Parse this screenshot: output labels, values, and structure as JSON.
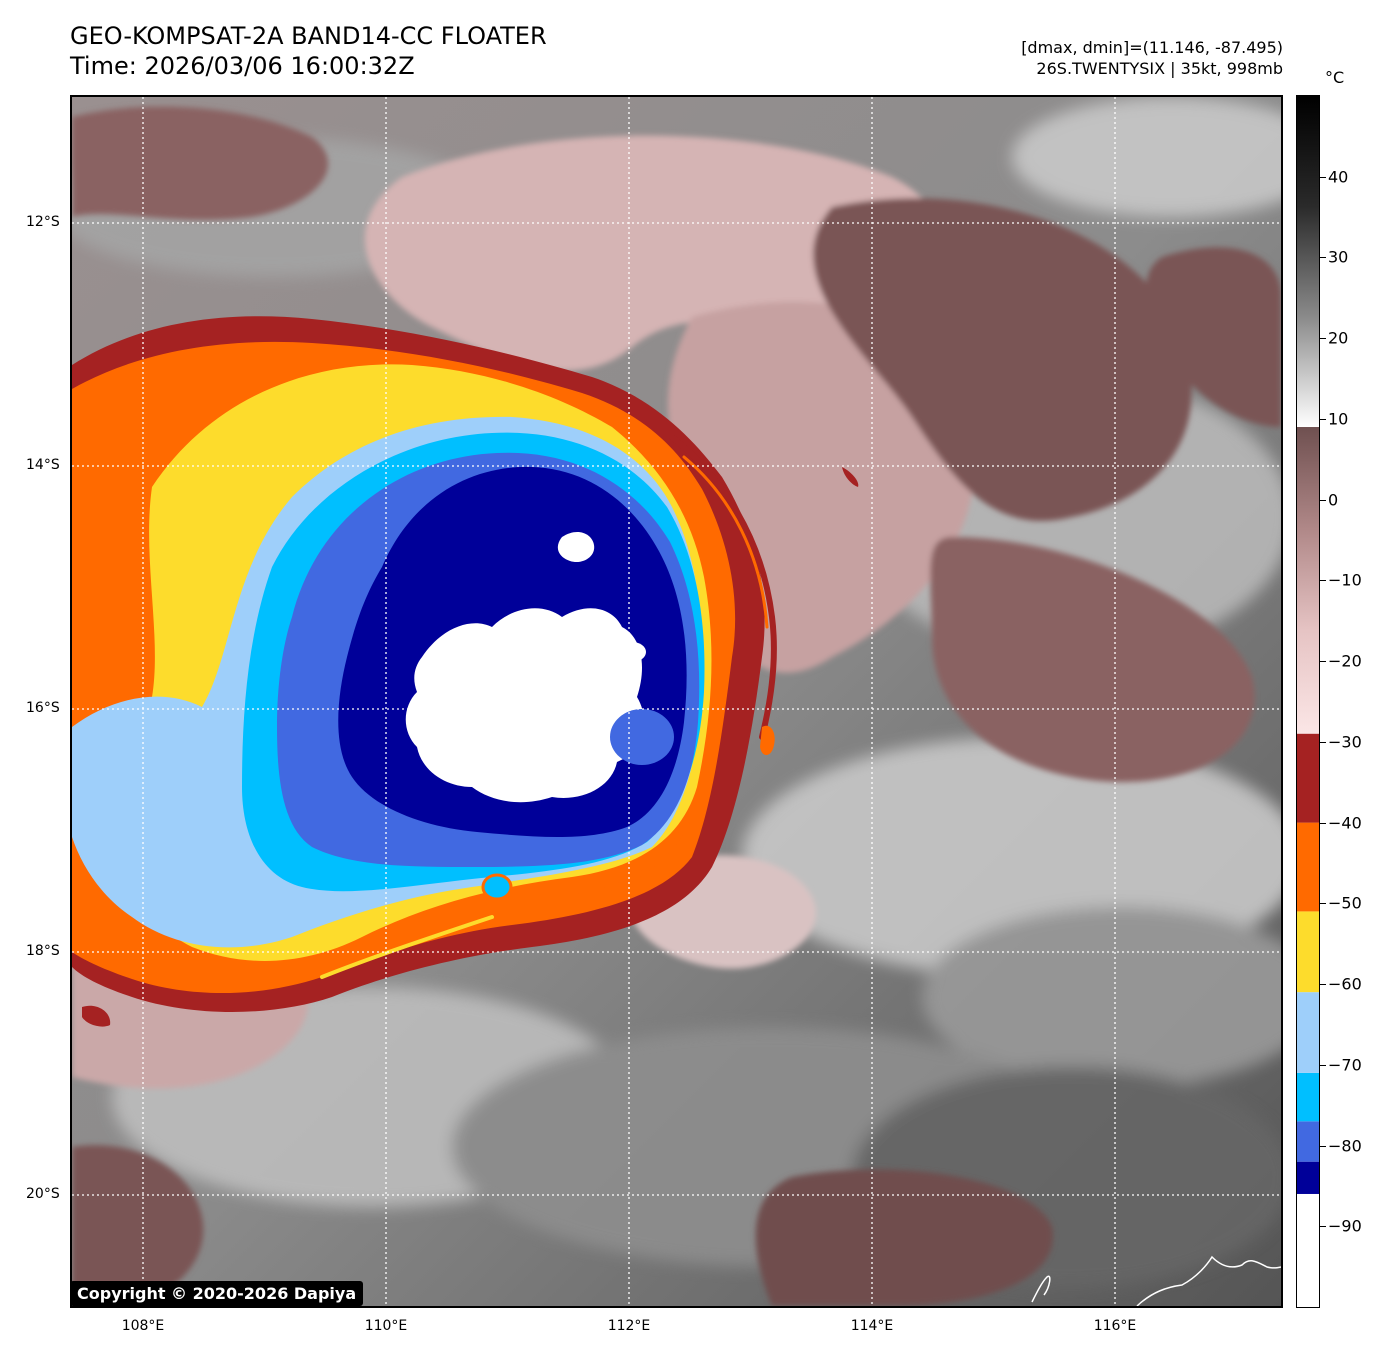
{
  "header": {
    "title": "GEO-KOMPSAT-2A BAND14-CC FLOATER",
    "time": "Time: 2026/03/06 16:00:32Z",
    "range": "[dmax, dmin]=(11.146, -87.495)",
    "storm": "26S.TWENTYSIX | 35kt, 998mb"
  },
  "map": {
    "lat_labels": [
      "12°S",
      "14°S",
      "16°S",
      "18°S",
      "20°S"
    ],
    "lon_labels": [
      "108°E",
      "110°E",
      "112°E",
      "114°E",
      "116°E"
    ],
    "copyright": "Copyright © 2020-2026 Dapiya"
  },
  "colorbar": {
    "unit": "°C",
    "tick_labels": [
      "40",
      "30",
      "20",
      "10",
      "0",
      "−10",
      "−20",
      "−30",
      "−40",
      "−50",
      "−60",
      "−70",
      "−80",
      "−90"
    ],
    "ticks": [
      40,
      30,
      20,
      10,
      0,
      -10,
      -20,
      -30,
      -40,
      -50,
      -60,
      -70,
      -80,
      -90
    ],
    "range": [
      -100,
      50
    ],
    "bands": [
      {
        "from": -100,
        "to": -86,
        "color": "#ffffff"
      },
      {
        "from": -86,
        "to": -82,
        "color": "#000099"
      },
      {
        "from": -82,
        "to": -77,
        "color": "#4169e1"
      },
      {
        "from": -77,
        "to": -71,
        "color": "#00bfff"
      },
      {
        "from": -71,
        "to": -61,
        "color": "#9ecffa"
      },
      {
        "from": -61,
        "to": -51,
        "color": "#fddc2c"
      },
      {
        "from": -51,
        "to": -40,
        "color": "#ff6a00"
      },
      {
        "from": -40,
        "to": -29,
        "color": "#a52222"
      }
    ],
    "gradients": [
      {
        "from": -29,
        "to": 9,
        "stops": [
          "#fbe6e6",
          "#e6c4c4",
          "#b08888",
          "#6f5050"
        ]
      },
      {
        "from": 9,
        "to": 50,
        "stops": [
          "#ffffff",
          "#8a8a8a",
          "#2a2a2a",
          "#000000"
        ]
      }
    ]
  },
  "colors": {
    "deep_core": "#000099",
    "cloud_top_white": "#ffffff",
    "ring_blue": "#4169e1",
    "cyan": "#00bfff",
    "light_blue": "#9ecffa",
    "yellow": "#fddc2c",
    "orange": "#ff6a00",
    "dark_red": "#a52222",
    "pink_cloud": "#d5b4b4",
    "brown_cloud": "#7a5555",
    "gray_ocean": "#7a7a7a"
  }
}
